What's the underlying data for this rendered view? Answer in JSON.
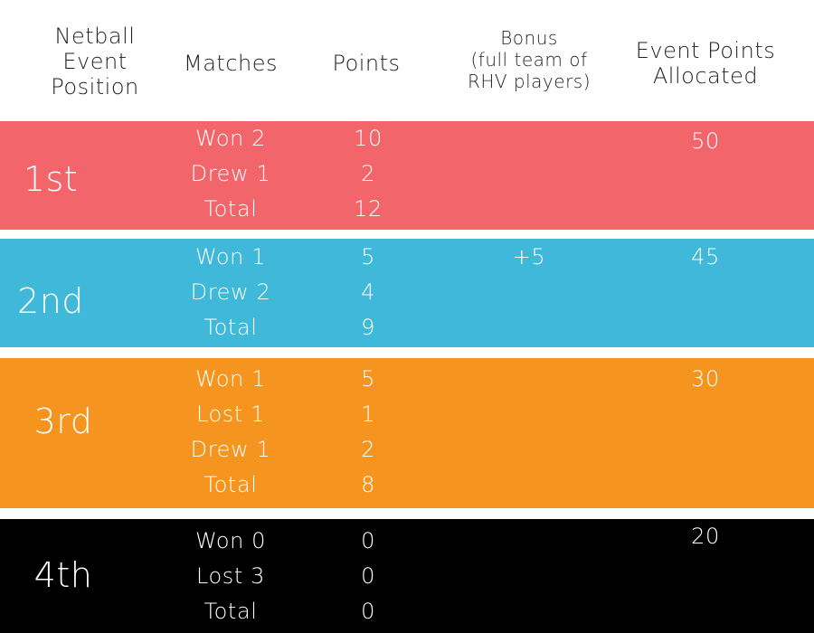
{
  "header": {
    "position": [
      "Netball",
      "Event",
      "Position"
    ],
    "matches": "Matches",
    "points": "Points",
    "bonus": [
      "Bonus",
      "(full team of",
      "RHV players)"
    ],
    "event_points": [
      "Event Points",
      "Allocated"
    ]
  },
  "rows": [
    {
      "position": "1st",
      "color": "#f2666b",
      "matches": [
        "Won 2",
        "Drew 1",
        "Total"
      ],
      "points": [
        "10",
        "2",
        "12"
      ],
      "bonus": "",
      "event_points": "50"
    },
    {
      "position": "2nd",
      "color": "#3fb8d9",
      "matches": [
        "Won 1",
        "Drew 2",
        "Total"
      ],
      "points": [
        "5",
        "4",
        "9"
      ],
      "bonus": "+5",
      "event_points": "45"
    },
    {
      "position": "3rd",
      "color": "#f5941f",
      "matches": [
        "Won 1",
        "Lost 1",
        "Drew 1",
        "Total"
      ],
      "points": [
        "5",
        "1",
        "2",
        "8"
      ],
      "bonus": "",
      "event_points": "30"
    },
    {
      "position": "4th",
      "color": "#000000",
      "matches": [
        "Won 0",
        "Lost 3",
        "Total"
      ],
      "points": [
        "0",
        "0",
        "0"
      ],
      "bonus": "",
      "event_points": "20"
    }
  ]
}
